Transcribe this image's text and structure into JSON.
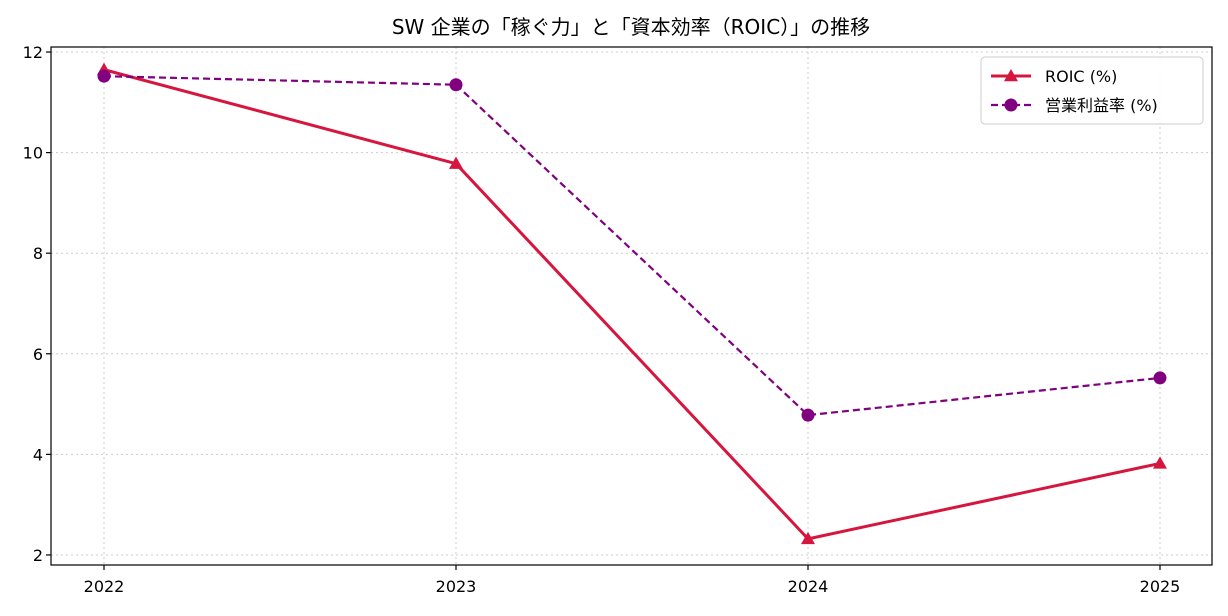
{
  "chart_data": {
    "type": "line",
    "title": "SW 企業の「稼ぐ力」と「資本効率（ROIC）」の推移",
    "xlabel": "",
    "ylabel": "",
    "categories": [
      "2022",
      "2023",
      "2024",
      "2025"
    ],
    "ylim": [
      1.8,
      12.1
    ],
    "yticks": [
      2,
      4,
      6,
      8,
      10,
      12
    ],
    "grid": true,
    "legend_position": "top-right",
    "series": [
      {
        "name": "ROIC (%)",
        "values": [
          11.65,
          9.78,
          2.32,
          3.82
        ],
        "color": "#d6163e",
        "line_style": "solid",
        "marker": "triangle"
      },
      {
        "name": "営業利益率 (%)",
        "values": [
          11.52,
          11.35,
          4.78,
          5.52
        ],
        "color": "#800080",
        "line_style": "dashed",
        "marker": "circle"
      }
    ]
  }
}
